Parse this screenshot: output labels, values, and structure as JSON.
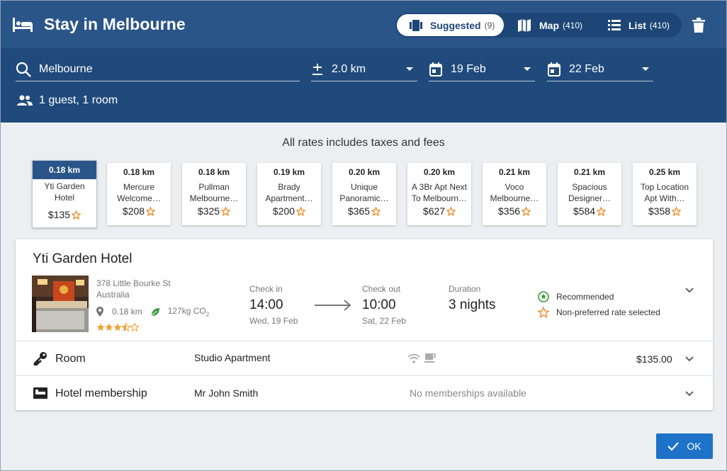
{
  "header": {
    "title": "Stay in Melbourne",
    "views": [
      {
        "label": "Suggested",
        "count": "(9)",
        "active": true
      },
      {
        "label": "Map",
        "count": "(410)",
        "active": false
      },
      {
        "label": "List",
        "count": "(410)",
        "active": false
      }
    ]
  },
  "search": {
    "location": "Melbourne",
    "radius": "2.0 km",
    "check_in": "19 Feb",
    "check_out": "22 Feb",
    "guests": "1 guest, 1 room"
  },
  "rates": {
    "note": "All rates includes taxes and fees",
    "cards": [
      {
        "distance": "0.18 km",
        "name": "Yti Garden Hotel",
        "price": "$135",
        "selected": true
      },
      {
        "distance": "0.18 km",
        "name": "Mercure Welcome…",
        "price": "$208",
        "selected": false
      },
      {
        "distance": "0.18 km",
        "name": "Pullman Melbourne…",
        "price": "$325",
        "selected": false
      },
      {
        "distance": "0.19 km",
        "name": "Brady Apartment…",
        "price": "$200",
        "selected": false
      },
      {
        "distance": "0.20 km",
        "name": "Unique Panoramic…",
        "price": "$365",
        "selected": false
      },
      {
        "distance": "0.20 km",
        "name": "A 3Br Apt Next To Melbourn…",
        "price": "$627",
        "selected": false
      },
      {
        "distance": "0.21 km",
        "name": "Voco Melbourne…",
        "price": "$356",
        "selected": false
      },
      {
        "distance": "0.21 km",
        "name": "Spacious Designer…",
        "price": "$584",
        "selected": false
      },
      {
        "distance": "0.25 km",
        "name": "Top Location Apt With…",
        "price": "$358",
        "selected": false
      }
    ]
  },
  "hotel": {
    "name": "Yti Garden Hotel",
    "address_line1": "378 Little Bourke St",
    "address_line2": "Australia",
    "distance": "0.18 km",
    "co2": "127kg CO",
    "co2_sub": "2",
    "stars": 3.5,
    "check_in_label": "Check in",
    "check_in_time": "14:00",
    "check_in_date": "Wed, 19 Feb",
    "check_out_label": "Check out",
    "check_out_time": "10:00",
    "check_out_date": "Sat, 22 Feb",
    "duration_label": "Duration",
    "duration": "3 nights",
    "recommended": "Recommended",
    "non_preferred": "Non-preferred rate selected",
    "room_label": "Room",
    "room_type": "Studio Apartment",
    "room_price": "$135.00",
    "membership_label": "Hotel membership",
    "member_name": "Mr John Smith",
    "membership_status": "No memberships available"
  },
  "actions": {
    "ok": "OK"
  },
  "colors": {
    "header": "#2a5588",
    "searchbar": "#214a7c",
    "accent_star": "#f08a24",
    "primary_button": "#1e73c9",
    "recommended": "#3a9a3a"
  }
}
